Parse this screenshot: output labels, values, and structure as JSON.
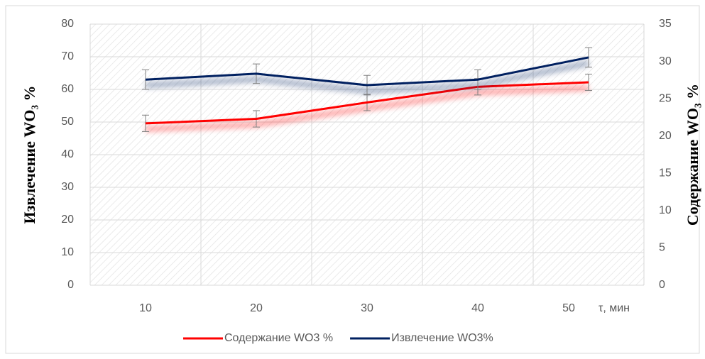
{
  "chart_data": {
    "type": "line",
    "y_label": "Извлечение WO₃ %",
    "y2_label": "Содержание WO₃ %",
    "x_label": "τ, мин",
    "categories": [
      "10",
      "20",
      "30",
      "40",
      "50"
    ],
    "series": [
      {
        "name": "Содержание WO3 %",
        "color": "#ff0000",
        "axis": "y2",
        "values": [
          21.7,
          22.3,
          24.5,
          26.6,
          27.2
        ],
        "errors": [
          1.1,
          1.1,
          1.1,
          1.1,
          1.1
        ]
      },
      {
        "name": "Извлечение WO3%",
        "color": "#002060",
        "values": [
          63,
          64.8,
          61.3,
          63,
          69.8
        ],
        "errors": [
          3,
          3,
          3,
          3,
          3
        ]
      }
    ],
    "ylim": [
      0,
      80
    ],
    "yticks": [
      0,
      10,
      20,
      30,
      40,
      50,
      60,
      70,
      80
    ],
    "y2lim": [
      0,
      35
    ],
    "y2ticks": [
      0,
      5,
      10,
      15,
      20,
      25,
      30,
      35
    ],
    "grid": true,
    "legend": "bottom"
  }
}
